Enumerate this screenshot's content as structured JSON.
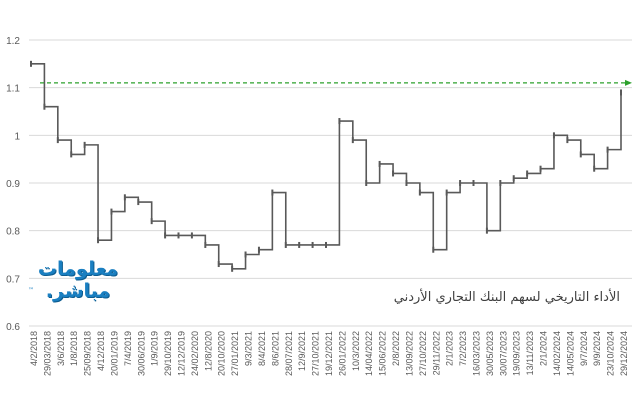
{
  "chart_data": {
    "type": "line",
    "title": "الأداء التاريخي لسهم البنك التجاري الأردني",
    "xlabel": "",
    "ylabel": "",
    "ylim": [
      0.6,
      1.2
    ],
    "yticks": [
      "0.6",
      "0.7",
      "0.8",
      "0.9",
      "1",
      "1.1",
      "1.2"
    ],
    "grid": true,
    "line_color": "#595959",
    "categories": [
      "4/2/2018",
      "29/03/2018",
      "3/6/2018",
      "1/8/2018",
      "25/09/2018",
      "4/12/2018",
      "20/01/2019",
      "7/4/2019",
      "30/06/2019",
      "1/9/2019",
      "29/10/2019",
      "12/12/2019",
      "24/02/2020",
      "12/8/2020",
      "20/10/2020",
      "27/01/2021",
      "9/3/2021",
      "8/4/2021",
      "8/6/2021",
      "28/07/2021",
      "12/9/2021",
      "27/10/2021",
      "19/12/2021",
      "26/01/2022",
      "10/3/2022",
      "14/04/2022",
      "15/06/2022",
      "2/8/2022",
      "13/09/2022",
      "27/10/2022",
      "29/11/2022",
      "2/1/2023",
      "7/2/2023",
      "16/03/2023",
      "30/05/2023",
      "30/07/2023",
      "19/09/2023",
      "13/11/2023",
      "2/1/2024",
      "14/02/2024",
      "14/05/2024",
      "9/7/2024",
      "9/9/2024",
      "23/10/2024",
      "29/12/2024"
    ],
    "values": [
      1.15,
      1.06,
      0.99,
      0.96,
      0.98,
      0.78,
      0.84,
      0.87,
      0.86,
      0.82,
      0.79,
      0.79,
      0.79,
      0.77,
      0.73,
      0.72,
      0.75,
      0.76,
      0.88,
      0.77,
      0.77,
      0.77,
      0.77,
      1.03,
      0.99,
      0.9,
      0.94,
      0.92,
      0.9,
      0.88,
      0.76,
      0.88,
      0.9,
      0.9,
      0.8,
      0.9,
      0.91,
      0.92,
      0.93,
      1.0,
      0.99,
      0.96,
      0.93,
      0.97,
      1.09
    ],
    "reference_line": {
      "value": 1.11,
      "color": "#2ca02c",
      "style": "dashed-arrow"
    }
  },
  "logo": {
    "line1": "معلومات",
    "line2": "مباشر.",
    "tm": "™",
    "color": "#1a7fc1"
  }
}
